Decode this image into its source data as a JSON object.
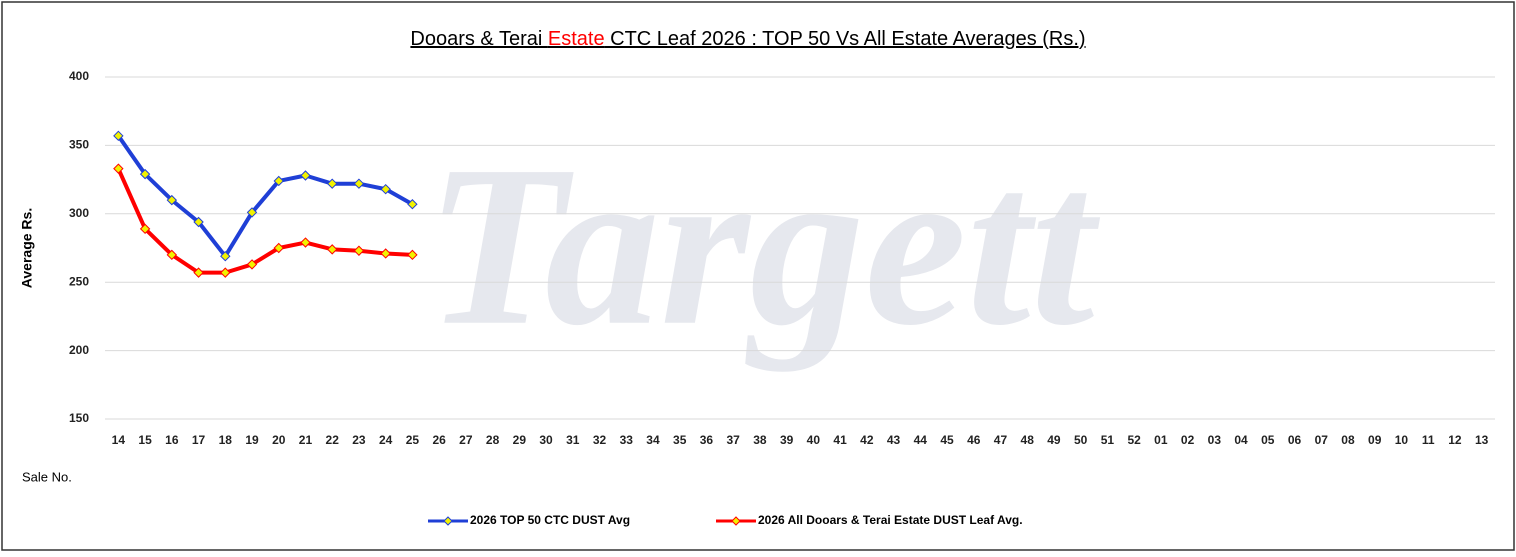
{
  "chart_data": {
    "type": "line",
    "title": [
      {
        "text": "Dooars & Terai ",
        "color": "#000000"
      },
      {
        "text": "Estate",
        "color": "#ff0000"
      },
      {
        "text": " CTC Leaf 2026 : TOP 50 Vs All Estate  Averages (Rs.)",
        "color": "#000000"
      }
    ],
    "watermark": "Targett",
    "y_label": "Average Rs.",
    "x_label": "Sale No.",
    "categories": [
      "14",
      "15",
      "16",
      "17",
      "18",
      "19",
      "20",
      "21",
      "22",
      "23",
      "24",
      "25",
      "26",
      "27",
      "28",
      "29",
      "30",
      "31",
      "32",
      "33",
      "34",
      "35",
      "36",
      "37",
      "38",
      "39",
      "40",
      "41",
      "42",
      "43",
      "44",
      "45",
      "46",
      "47",
      "48",
      "49",
      "50",
      "51",
      "52",
      "01",
      "02",
      "03",
      "04",
      "05",
      "06",
      "07",
      "08",
      "09",
      "10",
      "11",
      "12",
      "13"
    ],
    "series": [
      {
        "name": "2026 TOP 50 CTC DUST Avg",
        "color": "#1f3fd6",
        "marker_color": "#f2f200",
        "values": [
          357,
          329,
          310,
          294,
          269,
          301,
          324,
          328,
          322,
          322,
          318,
          307,
          null,
          null,
          null,
          null,
          null,
          null,
          null,
          null,
          null,
          null,
          null,
          null,
          null,
          null,
          null,
          null,
          null,
          null,
          null,
          null,
          null,
          null,
          null,
          null,
          null,
          null,
          null,
          null,
          null,
          null,
          null,
          null,
          null,
          null,
          null,
          null,
          null,
          null,
          null,
          null
        ]
      },
      {
        "name": "2026 All Dooars & Terai Estate DUST Leaf Avg.",
        "color": "#ff0000",
        "marker_color": "#f2f200",
        "values": [
          333,
          289,
          270,
          257,
          257,
          263,
          275,
          279,
          274,
          273,
          271,
          270,
          null,
          null,
          null,
          null,
          null,
          null,
          null,
          null,
          null,
          null,
          null,
          null,
          null,
          null,
          null,
          null,
          null,
          null,
          null,
          null,
          null,
          null,
          null,
          null,
          null,
          null,
          null,
          null,
          null,
          null,
          null,
          null,
          null,
          null,
          null,
          null,
          null,
          null,
          null,
          null
        ]
      }
    ],
    "ylim": [
      150,
      400
    ],
    "yticks": [
      150,
      200,
      250,
      300,
      350,
      400
    ],
    "grid": true,
    "legend": "bottom"
  }
}
